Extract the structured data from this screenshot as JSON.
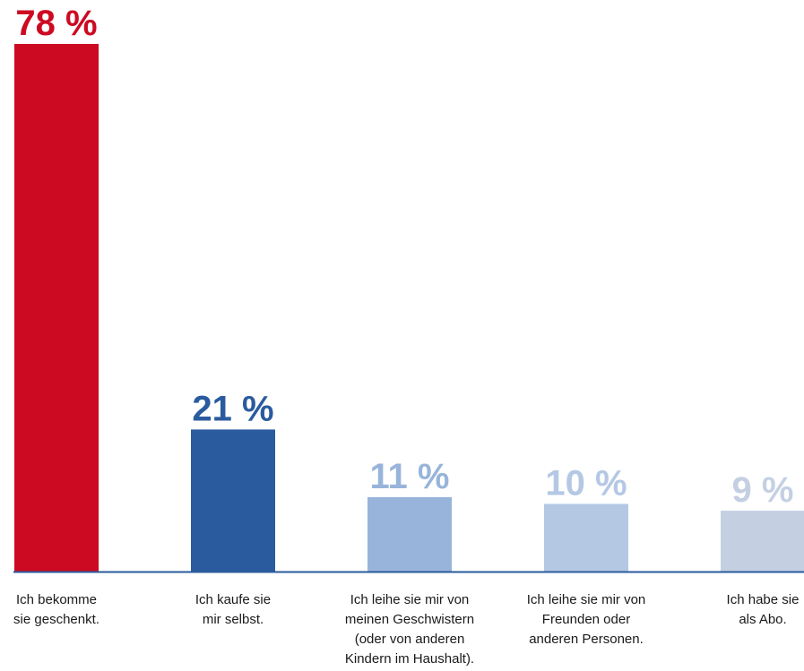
{
  "chart_data": {
    "type": "bar",
    "categories": [
      "Ich bekomme\nsie geschenkt.",
      "Ich kaufe sie\nmir selbst.",
      "Ich leihe sie mir von\nmeinen Geschwistern\n(oder von anderen\nKindern im Haushalt).",
      "Ich leihe sie mir von\nFreunden oder\nanderen Personen.",
      "Ich habe sie\nals Abo."
    ],
    "values": [
      78,
      21,
      11,
      10,
      9
    ],
    "value_labels": [
      "78 %",
      "21 %",
      "11 %",
      "10 %",
      "9 %"
    ],
    "unit": "%",
    "ylim": [
      0,
      78
    ],
    "grid": false,
    "legend": "none",
    "colors": [
      "#cc0a22",
      "#2a5b9e",
      "#98b4da",
      "#b4c8e4",
      "#c4d0e2"
    ],
    "axis_color": "#2a5b9e"
  }
}
